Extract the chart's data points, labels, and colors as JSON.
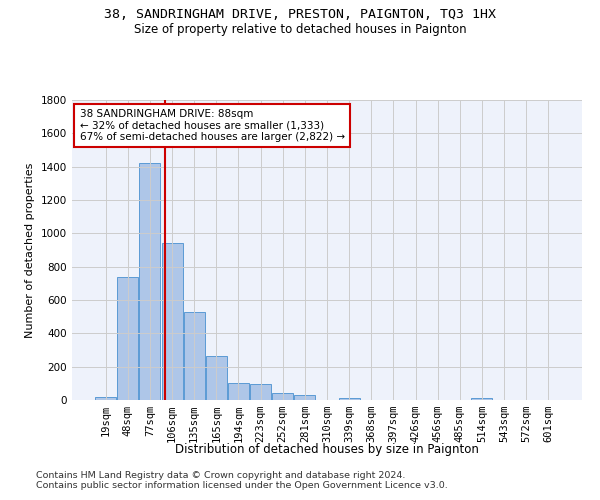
{
  "title1": "38, SANDRINGHAM DRIVE, PRESTON, PAIGNTON, TQ3 1HX",
  "title2": "Size of property relative to detached houses in Paignton",
  "xlabel": "Distribution of detached houses by size in Paignton",
  "ylabel": "Number of detached properties",
  "footer1": "Contains HM Land Registry data © Crown copyright and database right 2024.",
  "footer2": "Contains public sector information licensed under the Open Government Licence v3.0.",
  "categories": [
    "19sqm",
    "48sqm",
    "77sqm",
    "106sqm",
    "135sqm",
    "165sqm",
    "194sqm",
    "223sqm",
    "252sqm",
    "281sqm",
    "310sqm",
    "339sqm",
    "368sqm",
    "397sqm",
    "426sqm",
    "456sqm",
    "485sqm",
    "514sqm",
    "543sqm",
    "572sqm",
    "601sqm"
  ],
  "values": [
    20,
    740,
    1420,
    940,
    530,
    265,
    105,
    95,
    40,
    30,
    0,
    15,
    0,
    0,
    0,
    0,
    0,
    15,
    0,
    0,
    0
  ],
  "bar_color": "#aec6e8",
  "bar_edge_color": "#5b9bd5",
  "red_line_x": 2.68,
  "annotation_text": "38 SANDRINGHAM DRIVE: 88sqm\n← 32% of detached houses are smaller (1,333)\n67% of semi-detached houses are larger (2,822) →",
  "annotation_box_color": "#ffffff",
  "annotation_box_edge": "#cc0000",
  "red_line_color": "#cc0000",
  "ylim": [
    0,
    1800
  ],
  "yticks": [
    0,
    200,
    400,
    600,
    800,
    1000,
    1200,
    1400,
    1600,
    1800
  ],
  "grid_color": "#cccccc",
  "bg_color": "#eef2fb",
  "title1_fontsize": 9.5,
  "title2_fontsize": 8.5,
  "xlabel_fontsize": 8.5,
  "ylabel_fontsize": 8,
  "tick_fontsize": 7.5,
  "annotation_fontsize": 7.5,
  "footer_fontsize": 6.8
}
